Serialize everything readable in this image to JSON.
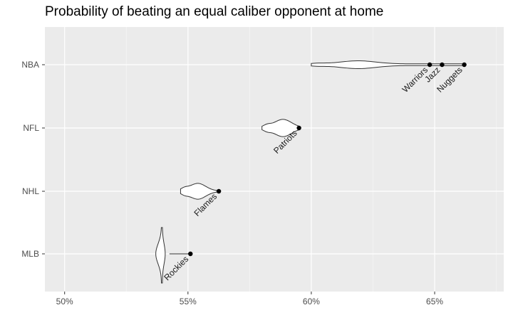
{
  "chart_data": {
    "type": "violin",
    "title": "Probability of beating an equal caliber opponent at home",
    "xlabel": "",
    "ylabel": "",
    "xlim": [
      49.2,
      67.8
    ],
    "x_ticks": [
      50,
      55,
      60,
      65
    ],
    "x_tick_labels": [
      "50%",
      "55%",
      "60%",
      "65%"
    ],
    "categories": [
      "MLB",
      "NHL",
      "NFL",
      "NBA"
    ],
    "violins": [
      {
        "league": "MLB",
        "min": 53.7,
        "max": 54.35,
        "median": 53.95,
        "widest": 54.0,
        "ymin_ext": 53.9,
        "ymax_ext": 54.2
      },
      {
        "league": "NHL",
        "min": 54.7,
        "max": 56.25,
        "median": 55.4,
        "widest": 55.4
      },
      {
        "league": "NFL",
        "min": 58.0,
        "max": 59.5,
        "median": 58.75,
        "widest": 58.75
      },
      {
        "league": "NBA",
        "min": 60.0,
        "max": 66.2,
        "median": 61.9,
        "widest": 61.9
      }
    ],
    "highlighted_teams": [
      {
        "league": "MLB",
        "team": "Rockies",
        "value": 55.1
      },
      {
        "league": "NHL",
        "team": "Flames",
        "value": 56.25
      },
      {
        "league": "NFL",
        "team": "Patriots",
        "value": 59.5
      },
      {
        "league": "NBA",
        "team": "Warriors",
        "value": 64.8
      },
      {
        "league": "NBA",
        "team": "Jazz",
        "value": 65.3
      },
      {
        "league": "NBA",
        "team": "Nuggets",
        "value": 66.2
      }
    ],
    "grid": true,
    "panel_background": "#ebebeb",
    "grid_color": "#ffffff"
  }
}
